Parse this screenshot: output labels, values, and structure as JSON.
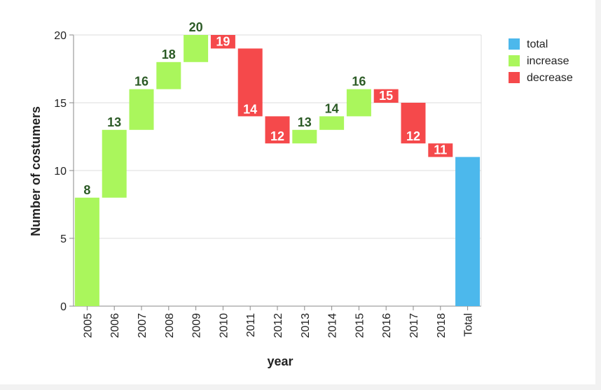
{
  "chart_data": {
    "type": "waterfall",
    "x_label": "year",
    "y_label": "Number of costumers",
    "categories": [
      "2005",
      "2006",
      "2007",
      "2008",
      "2009",
      "2010",
      "2011",
      "2012",
      "2013",
      "2014",
      "2015",
      "2016",
      "2017",
      "2018",
      "Total"
    ],
    "values": [
      8,
      13,
      16,
      18,
      20,
      19,
      14,
      12,
      13,
      14,
      16,
      15,
      12,
      11,
      11
    ],
    "legend": [
      {
        "name": "total",
        "color": "#4cb8ec"
      },
      {
        "name": "increase",
        "color": "#aaf65c"
      },
      {
        "name": "decrease",
        "color": "#f5494b"
      }
    ],
    "ylim": [
      0,
      20
    ],
    "yticks": [
      0,
      5,
      10,
      15,
      20
    ],
    "grid": true
  }
}
